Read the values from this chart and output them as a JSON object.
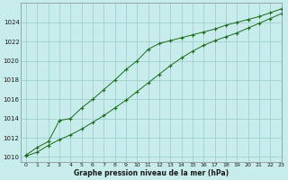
{
  "title": "Graphe pression niveau de la mer (hPa)",
  "bg_color": "#c8ecec",
  "grid_color": "#a0d0d0",
  "line_color": "#1a6b1a",
  "marker_color": "#1a6b1a",
  "xlim": [
    -0.5,
    23
  ],
  "ylim": [
    1009.5,
    1026.0
  ],
  "yticks": [
    1010,
    1012,
    1014,
    1016,
    1018,
    1020,
    1022,
    1024
  ],
  "xticks": [
    0,
    1,
    2,
    3,
    4,
    5,
    6,
    7,
    8,
    9,
    10,
    11,
    12,
    13,
    14,
    15,
    16,
    17,
    18,
    19,
    20,
    21,
    22,
    23
  ],
  "line1_x": [
    0,
    1,
    2,
    3,
    4,
    5,
    6,
    7,
    8,
    9,
    10,
    11,
    12,
    13,
    14,
    15,
    16,
    17,
    18,
    19,
    20,
    21,
    22,
    23
  ],
  "line1_y": [
    1010.1,
    1010.5,
    1011.2,
    1011.8,
    1012.3,
    1012.9,
    1013.6,
    1014.3,
    1015.1,
    1015.9,
    1016.8,
    1017.7,
    1018.6,
    1019.5,
    1020.3,
    1021.0,
    1021.6,
    1022.1,
    1022.5,
    1022.9,
    1023.4,
    1023.9,
    1024.4,
    1024.9
  ],
  "line2_x": [
    0,
    1,
    2,
    3,
    4,
    5,
    6,
    7,
    8,
    9,
    10,
    11,
    12,
    13,
    14,
    15,
    16,
    17,
    18,
    19,
    20,
    21,
    22,
    23
  ],
  "line2_y": [
    1010.2,
    1011.0,
    1011.6,
    1013.8,
    1014.0,
    1015.1,
    1016.0,
    1017.0,
    1018.0,
    1019.1,
    1020.0,
    1021.2,
    1021.8,
    1022.1,
    1022.4,
    1022.7,
    1023.0,
    1023.3,
    1023.7,
    1024.0,
    1024.3,
    1024.6,
    1025.0,
    1025.4
  ]
}
